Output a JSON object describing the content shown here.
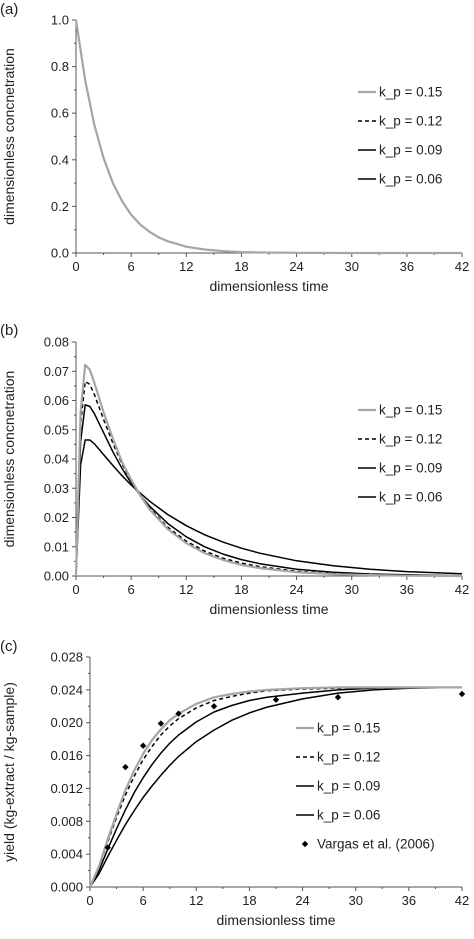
{
  "chart_data": [
    {
      "type": "line",
      "panel_label": "(a)",
      "xlabel": "dimensionless time",
      "ylabel": "dimensionless concnetration",
      "xlim": [
        0,
        42
      ],
      "ylim": [
        0,
        1
      ],
      "xticks": [
        "0",
        "6",
        "12",
        "18",
        "24",
        "30",
        "36",
        "42"
      ],
      "yticks": [
        "0.0",
        "0.2",
        "0.4",
        "0.6",
        "0.8",
        "1.0"
      ],
      "x_values": [
        0,
        1,
        2,
        3,
        4,
        5,
        6,
        7,
        8,
        9,
        10,
        12,
        14,
        16,
        18,
        20,
        24,
        30,
        36,
        42
      ],
      "legend_position": "right",
      "series": [
        {
          "name": "k_p = 0.15",
          "color": "#a6a6a6",
          "dash": "",
          "values": [
            1.0,
            0.741,
            0.549,
            0.407,
            0.301,
            0.223,
            0.165,
            0.122,
            0.091,
            0.067,
            0.05,
            0.027,
            0.015,
            0.008,
            0.004,
            0.002,
            0.001,
            0.0,
            0.0,
            0.0
          ]
        },
        {
          "name": "k_p = 0.12",
          "color": "#000000",
          "dash": "4,3",
          "values": [
            1.0,
            0.741,
            0.549,
            0.407,
            0.301,
            0.223,
            0.165,
            0.122,
            0.091,
            0.067,
            0.05,
            0.027,
            0.015,
            0.008,
            0.004,
            0.002,
            0.001,
            0.0,
            0.0,
            0.0
          ]
        },
        {
          "name": "k_p = 0.09",
          "color": "#000000",
          "dash": "",
          "values": [
            1.0,
            0.741,
            0.549,
            0.407,
            0.301,
            0.223,
            0.165,
            0.122,
            0.091,
            0.067,
            0.05,
            0.027,
            0.015,
            0.008,
            0.004,
            0.002,
            0.001,
            0.0,
            0.0,
            0.0
          ]
        },
        {
          "name": "k_p = 0.06",
          "color": "#000000",
          "dash": "",
          "values": [
            1.0,
            0.741,
            0.549,
            0.407,
            0.301,
            0.223,
            0.165,
            0.122,
            0.091,
            0.067,
            0.05,
            0.027,
            0.015,
            0.008,
            0.004,
            0.002,
            0.001,
            0.0,
            0.0,
            0.0
          ]
        }
      ]
    },
    {
      "type": "line",
      "panel_label": "(b)",
      "xlabel": "dimensionless time",
      "ylabel": "dimensionless concnetration",
      "xlim": [
        0,
        42
      ],
      "ylim": [
        0,
        0.08
      ],
      "xticks": [
        "0",
        "6",
        "12",
        "18",
        "24",
        "30",
        "36",
        "42"
      ],
      "yticks": [
        "0.00",
        "0.01",
        "0.02",
        "0.03",
        "0.04",
        "0.05",
        "0.06",
        "0.07",
        "0.08"
      ],
      "x_values": [
        0,
        0.5,
        1,
        1.5,
        2,
        3,
        4,
        5,
        6,
        7,
        8,
        10,
        12,
        14,
        16,
        18,
        20,
        24,
        28,
        32,
        36,
        42
      ],
      "legend_position": "right",
      "series": [
        {
          "name": "k_p = 0.15",
          "color": "#a6a6a6",
          "dash": "",
          "values": [
            0,
            0.056,
            0.0722,
            0.0705,
            0.066,
            0.056,
            0.047,
            0.039,
            0.033,
            0.0275,
            0.0228,
            0.016,
            0.0112,
            0.0078,
            0.0055,
            0.0038,
            0.0027,
            0.0013,
            0.0006,
            0.0003,
            0.0001,
            0.0
          ]
        },
        {
          "name": "k_p = 0.12",
          "color": "#000000",
          "dash": "4,3",
          "values": [
            0,
            0.052,
            0.0665,
            0.0655,
            0.062,
            0.0535,
            0.0455,
            0.0383,
            0.0325,
            0.0275,
            0.0232,
            0.0166,
            0.0119,
            0.0085,
            0.0061,
            0.0044,
            0.0032,
            0.0016,
            0.0008,
            0.0004,
            0.0002,
            0.0001
          ]
        },
        {
          "name": "k_p = 0.09",
          "color": "#000000",
          "dash": "",
          "values": [
            0,
            0.046,
            0.0585,
            0.058,
            0.0555,
            0.049,
            0.0425,
            0.0368,
            0.0318,
            0.0276,
            0.0239,
            0.0179,
            0.0134,
            0.01,
            0.0075,
            0.0056,
            0.0042,
            0.0023,
            0.0013,
            0.0007,
            0.0004,
            0.0001
          ]
        },
        {
          "name": "k_p = 0.06",
          "color": "#000000",
          "dash": "",
          "values": [
            0,
            0.038,
            0.0465,
            0.0465,
            0.0452,
            0.0415,
            0.0378,
            0.0343,
            0.0311,
            0.0283,
            0.0256,
            0.021,
            0.0172,
            0.0141,
            0.0116,
            0.0095,
            0.0078,
            0.0052,
            0.0035,
            0.0023,
            0.0015,
            0.0008
          ]
        }
      ]
    },
    {
      "type": "line",
      "panel_label": "(c)",
      "xlabel": "dimensionless time",
      "ylabel": "yield (kg-extract / kg-sample)",
      "xlim": [
        0,
        42
      ],
      "ylim": [
        0,
        0.028
      ],
      "xticks": [
        "0",
        "6",
        "12",
        "18",
        "24",
        "30",
        "36",
        "42"
      ],
      "yticks": [
        "0.000",
        "0.004",
        "0.008",
        "0.012",
        "0.016",
        "0.020",
        "0.024",
        "0.028"
      ],
      "x_values": [
        0,
        1,
        2,
        3,
        4,
        5,
        6,
        7,
        8,
        9,
        10,
        12,
        14,
        16,
        18,
        20,
        24,
        28,
        32,
        36,
        42
      ],
      "legend_position": "right",
      "series": [
        {
          "name": "k_p = 0.15",
          "color": "#a6a6a6",
          "dash": "",
          "values": [
            0,
            0.0025,
            0.0058,
            0.0089,
            0.0118,
            0.0142,
            0.0162,
            0.0179,
            0.0192,
            0.0203,
            0.0211,
            0.0223,
            0.0231,
            0.0235,
            0.0238,
            0.024,
            0.0242,
            0.0243,
            0.0243,
            0.0243,
            0.0243
          ]
        },
        {
          "name": "k_p = 0.12",
          "color": "#000000",
          "dash": "4,3",
          "values": [
            0,
            0.0024,
            0.0055,
            0.0085,
            0.0112,
            0.0135,
            0.0155,
            0.0171,
            0.0185,
            0.0196,
            0.0205,
            0.0218,
            0.0227,
            0.0232,
            0.0236,
            0.0239,
            0.0241,
            0.0242,
            0.0243,
            0.0243,
            0.0243
          ]
        },
        {
          "name": "k_p = 0.09",
          "color": "#000000",
          "dash": "",
          "values": [
            0,
            0.002,
            0.0046,
            0.0071,
            0.0094,
            0.0115,
            0.0133,
            0.0149,
            0.0163,
            0.0175,
            0.0185,
            0.0201,
            0.0213,
            0.0221,
            0.0227,
            0.0231,
            0.0236,
            0.024,
            0.0242,
            0.0243,
            0.0243
          ]
        },
        {
          "name": "k_p = 0.06",
          "color": "#000000",
          "dash": "",
          "values": [
            0,
            0.0016,
            0.0037,
            0.0057,
            0.0076,
            0.0093,
            0.0109,
            0.0123,
            0.0136,
            0.0148,
            0.0159,
            0.0177,
            0.0191,
            0.0203,
            0.0212,
            0.0219,
            0.0229,
            0.0236,
            0.024,
            0.0242,
            0.0243
          ]
        }
      ],
      "scatter": {
        "name": "Vargas et al. (2006)",
        "color": "#000000",
        "x": [
          2,
          4,
          6,
          8,
          10,
          14,
          21,
          28,
          42
        ],
        "y": [
          0.0048,
          0.0146,
          0.0172,
          0.0199,
          0.0211,
          0.022,
          0.0228,
          0.0231,
          0.0235
        ]
      }
    }
  ]
}
